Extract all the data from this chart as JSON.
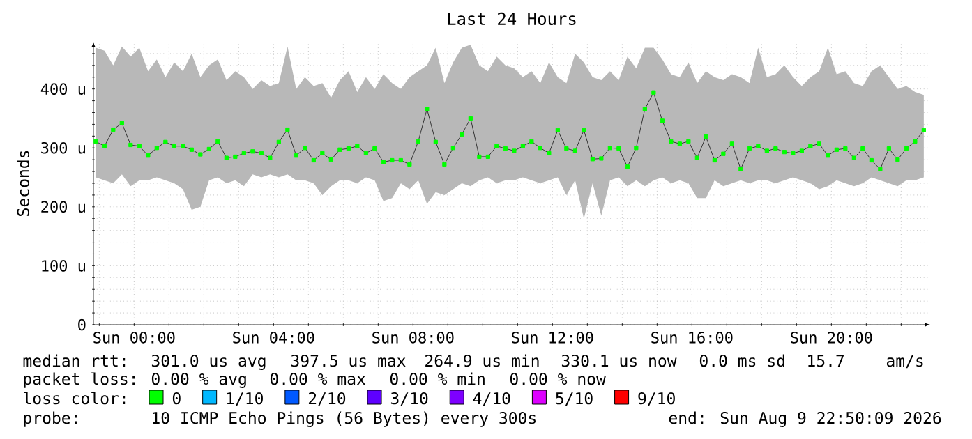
{
  "chart_data": {
    "type": "line",
    "title": "Last 24 Hours",
    "ylabel": "Seconds",
    "x": [
      "2026-08-08T22:54",
      "2026-08-08T23:09",
      "2026-08-08T23:24",
      "2026-08-08T23:39",
      "2026-08-08T23:54",
      "2026-08-09T00:09",
      "2026-08-09T00:24",
      "2026-08-09T00:39",
      "2026-08-09T00:54",
      "2026-08-09T01:09",
      "2026-08-09T01:24",
      "2026-08-09T01:39",
      "2026-08-09T01:54",
      "2026-08-09T02:09",
      "2026-08-09T02:24",
      "2026-08-09T02:39",
      "2026-08-09T02:54",
      "2026-08-09T03:09",
      "2026-08-09T03:24",
      "2026-08-09T03:39",
      "2026-08-09T03:54",
      "2026-08-09T04:09",
      "2026-08-09T04:24",
      "2026-08-09T04:39",
      "2026-08-09T04:54",
      "2026-08-09T05:09",
      "2026-08-09T05:24",
      "2026-08-09T05:39",
      "2026-08-09T05:54",
      "2026-08-09T06:09",
      "2026-08-09T06:24",
      "2026-08-09T06:39",
      "2026-08-09T06:54",
      "2026-08-09T07:09",
      "2026-08-09T07:24",
      "2026-08-09T07:39",
      "2026-08-09T07:54",
      "2026-08-09T08:09",
      "2026-08-09T08:24",
      "2026-08-09T08:39",
      "2026-08-09T08:54",
      "2026-08-09T09:09",
      "2026-08-09T09:24",
      "2026-08-09T09:39",
      "2026-08-09T09:54",
      "2026-08-09T10:09",
      "2026-08-09T10:24",
      "2026-08-09T10:39",
      "2026-08-09T10:54",
      "2026-08-09T11:09",
      "2026-08-09T11:24",
      "2026-08-09T11:39",
      "2026-08-09T11:54",
      "2026-08-09T12:09",
      "2026-08-09T12:24",
      "2026-08-09T12:39",
      "2026-08-09T12:54",
      "2026-08-09T13:09",
      "2026-08-09T13:24",
      "2026-08-09T13:39",
      "2026-08-09T13:54",
      "2026-08-09T14:09",
      "2026-08-09T14:24",
      "2026-08-09T14:39",
      "2026-08-09T14:54",
      "2026-08-09T15:09",
      "2026-08-09T15:24",
      "2026-08-09T15:39",
      "2026-08-09T15:54",
      "2026-08-09T16:09",
      "2026-08-09T16:24",
      "2026-08-09T16:39",
      "2026-08-09T16:54",
      "2026-08-09T17:09",
      "2026-08-09T17:24",
      "2026-08-09T17:39",
      "2026-08-09T17:54",
      "2026-08-09T18:09",
      "2026-08-09T18:24",
      "2026-08-09T18:39",
      "2026-08-09T18:54",
      "2026-08-09T19:09",
      "2026-08-09T19:24",
      "2026-08-09T19:39",
      "2026-08-09T19:54",
      "2026-08-09T20:09",
      "2026-08-09T20:24",
      "2026-08-09T20:39",
      "2026-08-09T20:54",
      "2026-08-09T21:09",
      "2026-08-09T21:24",
      "2026-08-09T21:39",
      "2026-08-09T21:54",
      "2026-08-09T22:09",
      "2026-08-09T22:24",
      "2026-08-09T22:39"
    ],
    "series": [
      {
        "name": "0",
        "color": "#00ff00",
        "values": [
          311,
          303,
          331,
          342,
          305,
          303,
          287,
          300,
          310,
          303,
          303,
          297,
          289,
          298,
          311,
          283,
          285,
          291,
          294,
          291,
          283,
          310,
          331,
          287,
          300,
          279,
          291,
          280,
          297,
          299,
          303,
          291,
          299,
          276,
          279,
          279,
          272,
          311,
          366,
          310,
          272,
          300,
          323,
          350,
          285,
          285,
          303,
          299,
          295,
          303,
          311,
          300,
          291,
          330,
          299,
          295,
          330,
          281,
          282,
          300,
          299,
          268,
          300,
          366,
          394,
          346,
          311,
          307,
          311,
          283,
          319,
          279,
          290,
          307,
          264,
          299,
          303,
          295,
          299,
          293,
          291,
          295,
          303,
          307,
          287,
          297,
          299,
          283,
          299,
          279,
          264,
          299,
          280,
          299,
          311,
          330
        ],
        "upper": [
          470,
          465,
          440,
          472,
          455,
          470,
          430,
          450,
          420,
          445,
          430,
          460,
          420,
          440,
          450,
          415,
          430,
          420,
          400,
          415,
          405,
          410,
          472,
          400,
          420,
          405,
          410,
          385,
          415,
          430,
          395,
          420,
          400,
          425,
          410,
          400,
          420,
          430,
          440,
          470,
          410,
          445,
          470,
          475,
          440,
          430,
          455,
          440,
          435,
          420,
          430,
          410,
          445,
          420,
          410,
          460,
          445,
          420,
          415,
          430,
          415,
          455,
          435,
          470,
          470,
          450,
          425,
          420,
          445,
          410,
          430,
          420,
          415,
          425,
          420,
          410,
          470,
          420,
          425,
          440,
          420,
          405,
          420,
          430,
          470,
          425,
          430,
          410,
          405,
          430,
          440,
          420,
          400,
          405,
          395,
          390
        ],
        "lower": [
          250,
          245,
          240,
          255,
          235,
          245,
          245,
          250,
          245,
          240,
          230,
          195,
          200,
          245,
          250,
          240,
          245,
          235,
          255,
          250,
          255,
          250,
          255,
          245,
          245,
          240,
          220,
          235,
          245,
          245,
          240,
          250,
          245,
          210,
          215,
          240,
          230,
          245,
          205,
          225,
          220,
          230,
          240,
          235,
          245,
          250,
          240,
          245,
          245,
          250,
          245,
          240,
          245,
          250,
          220,
          245,
          180,
          240,
          185,
          245,
          250,
          235,
          245,
          235,
          245,
          250,
          240,
          245,
          240,
          215,
          215,
          245,
          235,
          240,
          245,
          240,
          245,
          245,
          240,
          245,
          250,
          245,
          240,
          230,
          235,
          245,
          240,
          235,
          240,
          250,
          245,
          240,
          235,
          245,
          245,
          250
        ]
      },
      {
        "name": "1/10",
        "color": "#00b8ff",
        "values": [
          null,
          null,
          null,
          null,
          null,
          null,
          null,
          null,
          null,
          null,
          null,
          null,
          null,
          null,
          null,
          null,
          null,
          null,
          null,
          null,
          null,
          null,
          null,
          null,
          null,
          null,
          null,
          null,
          null,
          null,
          null,
          null,
          null,
          null,
          null,
          null,
          null,
          null,
          null,
          null,
          null,
          null,
          null,
          null,
          null,
          null,
          null,
          null,
          null,
          null,
          null,
          null,
          null,
          null,
          null,
          null,
          null,
          null,
          null,
          null,
          null,
          null,
          null,
          null,
          null,
          null,
          null,
          null,
          null,
          null,
          null,
          null,
          null,
          null,
          null,
          null,
          null,
          null,
          null,
          null,
          null,
          null,
          null,
          null,
          null,
          null,
          null,
          null,
          null,
          null,
          null,
          null,
          null,
          null,
          null,
          null
        ]
      },
      {
        "name": "2/10",
        "color": "#0059ff",
        "values": [
          null,
          null,
          null,
          null,
          null,
          null,
          null,
          null,
          null,
          null,
          null,
          null,
          null,
          null,
          null,
          null,
          null,
          null,
          null,
          null,
          null,
          null,
          null,
          null,
          null,
          null,
          null,
          null,
          null,
          null,
          null,
          null,
          null,
          null,
          null,
          null,
          null,
          null,
          null,
          null,
          null,
          null,
          null,
          null,
          null,
          null,
          null,
          null,
          null,
          null,
          null,
          null,
          null,
          null,
          null,
          null,
          null,
          null,
          null,
          null,
          null,
          null,
          null,
          null,
          null,
          null,
          null,
          null,
          null,
          null,
          null,
          null,
          null,
          null,
          null,
          null,
          null,
          null,
          null,
          null,
          null,
          null,
          null,
          null,
          null,
          null,
          null,
          null,
          null,
          null,
          null,
          null,
          null,
          null,
          null,
          null
        ]
      },
      {
        "name": "3/10",
        "color": "#5e00ff",
        "values": [
          null,
          null,
          null,
          null,
          null,
          null,
          null,
          null,
          null,
          null,
          null,
          null,
          null,
          null,
          null,
          null,
          null,
          null,
          null,
          null,
          null,
          null,
          null,
          null,
          null,
          null,
          null,
          null,
          null,
          null,
          null,
          null,
          null,
          null,
          null,
          null,
          null,
          null,
          null,
          null,
          null,
          null,
          null,
          null,
          null,
          null,
          null,
          null,
          null,
          null,
          null,
          null,
          null,
          null,
          null,
          null,
          null,
          null,
          null,
          null,
          null,
          null,
          null,
          null,
          null,
          null,
          null,
          null,
          null,
          null,
          null,
          null,
          null,
          null,
          null,
          null,
          null,
          null,
          null,
          null,
          null,
          null,
          null,
          null,
          null,
          null,
          null,
          null,
          null,
          null,
          null,
          null,
          null,
          null,
          null,
          null
        ]
      },
      {
        "name": "4/10",
        "color": "#7e00ff",
        "values": [
          null,
          null,
          null,
          null,
          null,
          null,
          null,
          null,
          null,
          null,
          null,
          null,
          null,
          null,
          null,
          null,
          null,
          null,
          null,
          null,
          null,
          null,
          null,
          null,
          null,
          null,
          null,
          null,
          null,
          null,
          null,
          null,
          null,
          null,
          null,
          null,
          null,
          null,
          null,
          null,
          null,
          null,
          null,
          null,
          null,
          null,
          null,
          null,
          null,
          null,
          null,
          null,
          null,
          null,
          null,
          null,
          null,
          null,
          null,
          null,
          null,
          null,
          null,
          null,
          null,
          null,
          null,
          null,
          null,
          null,
          null,
          null,
          null,
          null,
          null,
          null,
          null,
          null,
          null,
          null,
          null,
          null,
          null,
          null,
          null,
          null,
          null,
          null,
          null,
          null,
          null,
          null,
          null,
          null,
          null,
          null
        ]
      },
      {
        "name": "5/10",
        "color": "#dd00ff",
        "values": [
          null,
          null,
          null,
          null,
          null,
          null,
          null,
          null,
          null,
          null,
          null,
          null,
          null,
          null,
          null,
          null,
          null,
          null,
          null,
          null,
          null,
          null,
          null,
          null,
          null,
          null,
          null,
          null,
          null,
          null,
          null,
          null,
          null,
          null,
          null,
          null,
          null,
          null,
          null,
          null,
          null,
          null,
          null,
          null,
          null,
          null,
          null,
          null,
          null,
          null,
          null,
          null,
          null,
          null,
          null,
          null,
          null,
          null,
          null,
          null,
          null,
          null,
          null,
          null,
          null,
          null,
          null,
          null,
          null,
          null,
          null,
          null,
          null,
          null,
          null,
          null,
          null,
          null,
          null,
          null,
          null,
          null,
          null,
          null,
          null,
          null,
          null,
          null,
          null,
          null,
          null,
          null,
          null,
          null,
          null,
          null
        ]
      },
      {
        "name": "9/10",
        "color": "#ff0000",
        "values": [
          null,
          null,
          null,
          null,
          null,
          null,
          null,
          null,
          null,
          null,
          null,
          null,
          null,
          null,
          null,
          null,
          null,
          null,
          null,
          null,
          null,
          null,
          null,
          null,
          null,
          null,
          null,
          null,
          null,
          null,
          null,
          null,
          null,
          null,
          null,
          null,
          null,
          null,
          null,
          null,
          null,
          null,
          null,
          null,
          null,
          null,
          null,
          null,
          null,
          null,
          null,
          null,
          null,
          null,
          null,
          null,
          null,
          null,
          null,
          null,
          null,
          null,
          null,
          null,
          null,
          null,
          null,
          null,
          null,
          null,
          null,
          null,
          null,
          null,
          null,
          null,
          null,
          null,
          null,
          null,
          null,
          null,
          null,
          null,
          null,
          null,
          null,
          null,
          null,
          null,
          null,
          null,
          null,
          null,
          null,
          null
        ]
      }
    ],
    "legend": "bottom",
    "legend_title": "loss color:",
    "marker": "square",
    "grid": true,
    "xlim": [
      "2026-08-08T22:50",
      "2026-08-09T22:50"
    ],
    "ylim": [
      0,
      480
    ],
    "xticks": [
      {
        "value": "2026-08-08T23:00",
        "label": null
      },
      {
        "value": "2026-08-09T00:00",
        "label": "Sun 00:00"
      },
      {
        "value": "2026-08-09T01:00",
        "label": null
      },
      {
        "value": "2026-08-09T02:00",
        "label": null
      },
      {
        "value": "2026-08-09T03:00",
        "label": null
      },
      {
        "value": "2026-08-09T04:00",
        "label": "Sun 04:00"
      },
      {
        "value": "2026-08-09T05:00",
        "label": null
      },
      {
        "value": "2026-08-09T06:00",
        "label": null
      },
      {
        "value": "2026-08-09T07:00",
        "label": null
      },
      {
        "value": "2026-08-09T08:00",
        "label": "Sun 08:00"
      },
      {
        "value": "2026-08-09T09:00",
        "label": null
      },
      {
        "value": "2026-08-09T10:00",
        "label": null
      },
      {
        "value": "2026-08-09T11:00",
        "label": null
      },
      {
        "value": "2026-08-09T12:00",
        "label": "Sun 12:00"
      },
      {
        "value": "2026-08-09T13:00",
        "label": null
      },
      {
        "value": "2026-08-09T14:00",
        "label": null
      },
      {
        "value": "2026-08-09T15:00",
        "label": null
      },
      {
        "value": "2026-08-09T16:00",
        "label": "Sun 16:00"
      },
      {
        "value": "2026-08-09T17:00",
        "label": null
      },
      {
        "value": "2026-08-09T18:00",
        "label": null
      },
      {
        "value": "2026-08-09T19:00",
        "label": null
      },
      {
        "value": "2026-08-09T20:00",
        "label": "Sun 20:00"
      },
      {
        "value": "2026-08-09T21:00",
        "label": null
      },
      {
        "value": "2026-08-09T22:00",
        "label": null
      }
    ],
    "yticks": [
      0,
      {
        "value": 20,
        "label": null
      },
      {
        "value": 40,
        "label": null
      },
      {
        "value": 60,
        "label": null
      },
      {
        "value": 80,
        "label": null
      },
      {
        "value": 100,
        "label": "100 u"
      },
      {
        "value": 120,
        "label": null
      },
      {
        "value": 140,
        "label": null
      },
      {
        "value": 160,
        "label": null
      },
      {
        "value": 180,
        "label": null
      },
      {
        "value": 200,
        "label": "200 u"
      },
      {
        "value": 220,
        "label": null
      },
      {
        "value": 240,
        "label": null
      },
      {
        "value": 260,
        "label": null
      },
      {
        "value": 280,
        "label": null
      },
      {
        "value": 300,
        "label": "300 u"
      },
      {
        "value": 320,
        "label": null
      },
      {
        "value": 340,
        "label": null
      },
      {
        "value": 360,
        "label": null
      },
      {
        "value": 380,
        "label": null
      },
      {
        "value": 400,
        "label": "400 u"
      },
      {
        "value": 420,
        "label": null
      },
      {
        "value": 440,
        "label": null
      },
      {
        "value": 460,
        "label": null
      }
    ],
    "annotations": [
      "median rtt:",
      "301.0 us avg",
      "397.5 us max",
      "264.9 us min",
      "330.1 us now",
      "0.0 ms sd",
      "15.7",
      "am/s",
      "packet loss:",
      "0.00 % avg",
      "0.00 % max",
      "0.00 % min",
      "0.00 % now",
      "probe:",
      "10 ICMP Echo Pings (56 Bytes) every 300s",
      "end: Sun Aug 9 22:50:09 2026"
    ]
  }
}
